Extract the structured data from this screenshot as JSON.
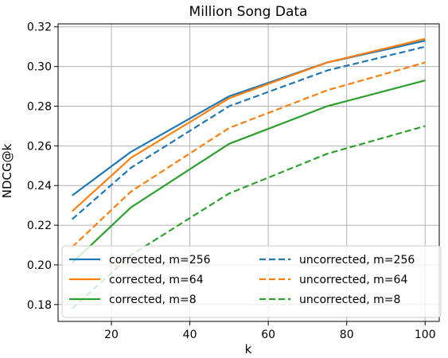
{
  "chart_data": {
    "type": "line",
    "title": "Million Song Data",
    "xlabel": "k",
    "ylabel": "NDCG@k",
    "xlim": [
      6.4,
      103.6
    ],
    "ylim": [
      0.1715,
      0.3215
    ],
    "xticks": [
      20,
      40,
      60,
      80,
      100
    ],
    "yticks": [
      0.18,
      0.2,
      0.22,
      0.24,
      0.26,
      0.28,
      0.3,
      0.32
    ],
    "xtick_labels": [
      "20",
      "40",
      "60",
      "80",
      "100"
    ],
    "ytick_labels": [
      "0.18",
      "0.20",
      "0.22",
      "0.24",
      "0.26",
      "0.28",
      "0.30",
      "0.32"
    ],
    "grid": true,
    "legend_position": "lower-center",
    "x": [
      10,
      25,
      50,
      75,
      100
    ],
    "series": [
      {
        "name": "corrected, m=256",
        "color": "#1f77b4",
        "dashed": false,
        "values": [
          0.235,
          0.257,
          0.285,
          0.302,
          0.313
        ]
      },
      {
        "name": "corrected, m=64",
        "color": "#ff7f0e",
        "dashed": false,
        "values": [
          0.227,
          0.254,
          0.284,
          0.302,
          0.314
        ]
      },
      {
        "name": "corrected, m=8",
        "color": "#2ca02c",
        "dashed": false,
        "values": [
          0.201,
          0.229,
          0.261,
          0.28,
          0.293
        ]
      },
      {
        "name": "uncorrected, m=256",
        "color": "#1f77b4",
        "dashed": true,
        "values": [
          0.223,
          0.249,
          0.28,
          0.298,
          0.31
        ]
      },
      {
        "name": "uncorrected, m=64",
        "color": "#ff7f0e",
        "dashed": true,
        "values": [
          0.209,
          0.237,
          0.269,
          0.288,
          0.302
        ]
      },
      {
        "name": "uncorrected, m=8",
        "color": "#2ca02c",
        "dashed": true,
        "values": [
          0.178,
          0.205,
          0.236,
          0.256,
          0.27
        ]
      }
    ]
  }
}
